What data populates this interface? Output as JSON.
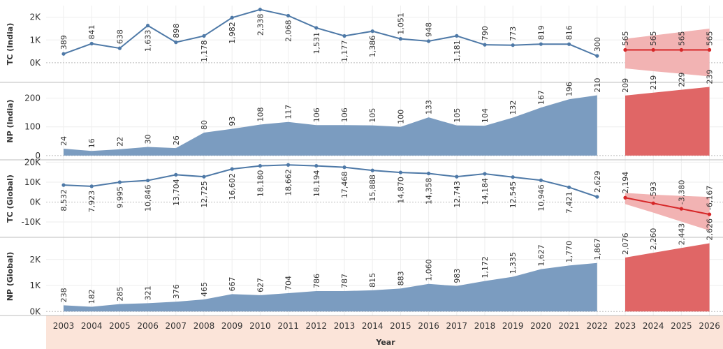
{
  "chart_data": {
    "type": "line",
    "xlabel": "Year",
    "years": [
      "2003",
      "2004",
      "2005",
      "2006",
      "2007",
      "2008",
      "2009",
      "2010",
      "2011",
      "2012",
      "2013",
      "2014",
      "2015",
      "2016",
      "2017",
      "2018",
      "2019",
      "2020",
      "2021",
      "2022",
      "2023",
      "2024",
      "2025",
      "2026"
    ],
    "forecast_start": "2023",
    "colors": {
      "actual": "#4e79a7",
      "area_actual": "#7b9cc0",
      "forecast_line": "#d62728",
      "forecast_area": "#e06666",
      "forecast_band": "#f2b3b3",
      "xaxis_band": "#fbe4d9",
      "grid": "#eeeeee",
      "zero_line": "#bbbbbb"
    },
    "panels": [
      {
        "ylabel": "TC (India)",
        "type": "line",
        "ylim": [
          -800,
          2450
        ],
        "yticks": [
          0,
          1000,
          2000
        ],
        "ytick_labels": [
          "0K",
          "1K",
          "2K"
        ],
        "values": [
          389,
          841,
          638,
          1633,
          898,
          1178,
          1982,
          2338,
          2068,
          1531,
          1177,
          1386,
          1051,
          948,
          1181,
          790,
          773,
          819,
          816,
          300
        ],
        "labels": [
          "389",
          "841",
          "638",
          "1,633",
          "898",
          "1,178",
          "1,982",
          "2,338",
          "2,068",
          "1,531",
          "1,177",
          "1,386",
          "1,051",
          "948",
          "1,181",
          "790",
          "773",
          "819",
          "816",
          "300"
        ],
        "forecast": {
          "values": [
            565,
            565,
            565,
            565
          ],
          "labels": [
            "565",
            "565",
            "565",
            "565"
          ],
          "band_upper": [
            1050,
            1200,
            1350,
            1500
          ],
          "band_lower": [
            -250,
            -370,
            -480,
            -600
          ]
        }
      },
      {
        "ylabel": "NP (India)",
        "type": "area",
        "ylim": [
          -10,
          250
        ],
        "yticks": [
          0,
          100,
          200
        ],
        "ytick_labels": [
          "0",
          "100",
          "200"
        ],
        "values": [
          24,
          16,
          22,
          30,
          26,
          80,
          93,
          108,
          117,
          106,
          106,
          105,
          100,
          133,
          105,
          104,
          132,
          167,
          196,
          210
        ],
        "labels": [
          "24",
          "16",
          "22",
          "30",
          "26",
          "80",
          "93",
          "108",
          "117",
          "106",
          "106",
          "105",
          "100",
          "133",
          "105",
          "104",
          "132",
          "167",
          "196",
          "210"
        ],
        "forecast": {
          "values": [
            209,
            219,
            229,
            239
          ],
          "labels": [
            "209",
            "219",
            "229",
            "239"
          ]
        }
      },
      {
        "ylabel": "TC (Global)",
        "type": "line",
        "ylim": [
          -17000,
          20500
        ],
        "yticks": [
          -10000,
          0,
          10000,
          20000
        ],
        "ytick_labels": [
          "-10K",
          "0K",
          "10K",
          "20K"
        ],
        "values": [
          8532,
          7923,
          9995,
          10846,
          13704,
          12725,
          16602,
          18180,
          18662,
          18194,
          17468,
          15888,
          14870,
          14358,
          12743,
          14184,
          12545,
          10946,
          7421,
          2629
        ],
        "labels": [
          "8,532",
          "7,923",
          "9,995",
          "10,846",
          "13,704",
          "12,725",
          "16,602",
          "18,180",
          "18,662",
          "18,194",
          "17,468",
          "15,888",
          "14,870",
          "14,358",
          "12,743",
          "14,184",
          "12,545",
          "10,946",
          "7,421",
          "2,629"
        ],
        "forecast": {
          "values": [
            2194,
            -593,
            -3380,
            -6167
          ],
          "labels": [
            "2,194",
            "-593",
            "-3,380",
            "-6,167"
          ],
          "band_upper": [
            4600,
            3700,
            3100,
            2600
          ],
          "band_lower": [
            -1000,
            -5300,
            -9800,
            -14300
          ]
        }
      },
      {
        "ylabel": "NP (Global)",
        "type": "area",
        "ylim": [
          -100,
          2800
        ],
        "yticks": [
          0,
          1000,
          2000
        ],
        "ytick_labels": [
          "0K",
          "1K",
          "2K"
        ],
        "values": [
          238,
          182,
          285,
          321,
          376,
          465,
          667,
          627,
          704,
          786,
          787,
          815,
          883,
          1060,
          983,
          1172,
          1335,
          1627,
          1770,
          1867
        ],
        "labels": [
          "238",
          "182",
          "285",
          "321",
          "376",
          "465",
          "667",
          "627",
          "704",
          "786",
          "787",
          "815",
          "883",
          "1,060",
          "983",
          "1,172",
          "1,335",
          "1,627",
          "1,770",
          "1,867"
        ],
        "forecast": {
          "values": [
            2076,
            2260,
            2443,
            2626
          ],
          "labels": [
            "2,076",
            "2,260",
            "2,443",
            "2,626"
          ]
        }
      }
    ]
  }
}
